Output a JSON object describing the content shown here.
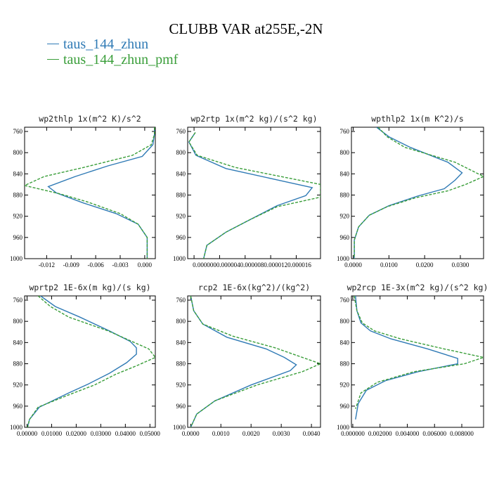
{
  "title": "CLUBB VAR at255E,-2N",
  "legend": [
    {
      "label": "taus_144_zhun",
      "color": "#2f7ab5"
    },
    {
      "label": "taus_144_zhun_pmf",
      "color": "#3a9e3a"
    }
  ],
  "chart_data": [
    {
      "type": "line",
      "title": "wp2thlp  1x(m^2 K)/s^2",
      "ylim": [
        1000,
        752
      ],
      "yticks": [
        760,
        800,
        840,
        880,
        920,
        960,
        1000
      ],
      "xlim": [
        -0.0147,
        0.0013
      ],
      "xticks": [
        -0.012,
        -0.009,
        -0.006,
        -0.003,
        0.0
      ],
      "xticklabels": [
        "-0.012",
        "-0.009",
        "-0.006",
        "-0.003",
        "0.000"
      ],
      "series": [
        {
          "name": "taus_144_zhun",
          "color": "#2f7ab5",
          "dash": "",
          "x": [
            0.0012,
            0.0012,
            0.001,
            -0.0003,
            -0.0045,
            -0.0085,
            -0.0118,
            -0.0108,
            -0.0075,
            -0.0035,
            -0.0008,
            0.0003,
            0.0003
          ],
          "y": [
            752,
            765,
            785,
            807,
            825,
            845,
            864,
            876,
            895,
            915,
            935,
            960,
            1000
          ]
        },
        {
          "name": "taus_144_zhun_pmf",
          "color": "#3a9e3a",
          "dash": "4,2",
          "x": [
            0.0012,
            0.0012,
            0.0008,
            -0.0015,
            -0.0075,
            -0.0123,
            -0.0147,
            -0.0103,
            -0.007,
            -0.003,
            -0.0008,
            0.0003,
            0.0003
          ],
          "y": [
            752,
            765,
            785,
            805,
            828,
            845,
            862,
            878,
            893,
            915,
            935,
            960,
            1000
          ]
        }
      ]
    },
    {
      "type": "line",
      "title": "wp2rtp  1x(m^2 kg)/(s^2 kg)",
      "ylim": [
        1000,
        752
      ],
      "yticks": [
        760,
        800,
        840,
        880,
        920,
        960,
        1000
      ],
      "xlim": [
        -1e-06,
        1.98e-05
      ],
      "xticks": [
        0.0,
        4e-06,
        8e-06,
        1.2e-05,
        1.6e-05
      ],
      "xticklabels": [
        "0.000000",
        "0.000004",
        "0.000008",
        "0.000012",
        "0.000016"
      ],
      "xticklabels_joined": "0.0000000.0000040.0000080.0000120.000016",
      "series": [
        {
          "name": "taus_144_zhun",
          "color": "#2f7ab5",
          "dash": "",
          "x": [
            2e-07,
            -8e-07,
            3e-07,
            5e-06,
            1.85e-05,
            1.75e-05,
            1.3e-05,
            9e-06,
            5e-06,
            2e-06,
            1.5e-06
          ],
          "y": [
            762,
            780,
            805,
            830,
            866,
            881,
            900,
            925,
            950,
            975,
            1000
          ]
        },
        {
          "name": "taus_144_zhun_pmf",
          "color": "#3a9e3a",
          "dash": "4,2",
          "x": [
            2e-07,
            -8e-07,
            5e-07,
            6.5e-06,
            1.98e-05,
            1.98e-05,
            1.3e-05,
            8.5e-06,
            5e-06,
            2e-06,
            1.5e-06
          ],
          "y": [
            762,
            780,
            805,
            828,
            860,
            884,
            902,
            928,
            950,
            975,
            1000
          ]
        }
      ]
    },
    {
      "type": "line",
      "title": "wpthlp2  1x(m K^2)/s",
      "ylim": [
        1000,
        752
      ],
      "yticks": [
        760,
        800,
        840,
        880,
        920,
        960,
        1000
      ],
      "xlim": [
        -0.0005,
        0.0365
      ],
      "xticks": [
        0.0,
        0.01,
        0.02,
        0.03
      ],
      "xticklabels": [
        "0.0000",
        "0.0100",
        "0.0200",
        "0.0300"
      ],
      "series": [
        {
          "name": "taus_144_zhun",
          "color": "#2f7ab5",
          "dash": "",
          "x": [
            0.0065,
            0.01,
            0.016,
            0.0265,
            0.0305,
            0.0285,
            0.0255,
            0.018,
            0.01,
            0.0045,
            0.0015,
            0.0003,
            0.0003
          ],
          "y": [
            752,
            770,
            790,
            818,
            838,
            852,
            868,
            882,
            900,
            918,
            940,
            965,
            1000
          ]
        },
        {
          "name": "taus_144_zhun_pmf",
          "color": "#3a9e3a",
          "dash": "4,2",
          "x": [
            0.007,
            0.0095,
            0.0145,
            0.0285,
            0.0365,
            0.0315,
            0.0265,
            0.0175,
            0.0095,
            0.0045,
            0.0015,
            0.0003,
            0.0003
          ],
          "y": [
            752,
            770,
            790,
            818,
            845,
            860,
            872,
            885,
            902,
            918,
            940,
            965,
            1000
          ]
        }
      ]
    },
    {
      "type": "line",
      "title": "wprtp2  1E-6x(m kg)/(s kg)",
      "ylim": [
        1000,
        752
      ],
      "yticks": [
        760,
        800,
        840,
        880,
        920,
        960,
        1000
      ],
      "xlim": [
        -0.001,
        0.0522
      ],
      "xticks": [
        0.0,
        0.01,
        0.02,
        0.03,
        0.04,
        0.05
      ],
      "xticklabels": [
        "0.00000",
        "0.01000",
        "0.02000",
        "0.03000",
        "0.04000",
        "0.05000"
      ],
      "series": [
        {
          "name": "taus_144_zhun",
          "color": "#2f7ab5",
          "dash": "",
          "x": [
            0.0055,
            0.0115,
            0.0215,
            0.0335,
            0.042,
            0.0445,
            0.0445,
            0.0405,
            0.0335,
            0.025,
            0.017,
            0.005,
            0.001,
            0.0002
          ],
          "y": [
            752,
            772,
            792,
            818,
            838,
            850,
            862,
            878,
            898,
            918,
            935,
            962,
            985,
            1000
          ]
        },
        {
          "name": "taus_144_zhun_pmf",
          "color": "#3a9e3a",
          "dash": "4,2",
          "x": [
            0.0045,
            0.0095,
            0.017,
            0.033,
            0.0495,
            0.0522,
            0.0445,
            0.036,
            0.0275,
            0.019,
            0.0045,
            0.001,
            0.0002
          ],
          "y": [
            752,
            772,
            792,
            818,
            852,
            868,
            884,
            900,
            920,
            935,
            962,
            985,
            1000
          ]
        }
      ]
    },
    {
      "type": "line",
      "title": "rcp2  1E-6x(kg^2)/(kg^2)",
      "ylim": [
        1000,
        752
      ],
      "yticks": [
        760,
        800,
        840,
        880,
        920,
        960,
        1000
      ],
      "xlim": [
        -0.0001,
        0.0043
      ],
      "xticks": [
        0.0,
        0.001,
        0.002,
        0.003,
        0.004
      ],
      "xticklabels": [
        "0.0000",
        "0.0010",
        "0.0020",
        "0.0030",
        "0.0040"
      ],
      "series": [
        {
          "name": "taus_144_zhun",
          "color": "#2f7ab5",
          "dash": "",
          "x": [
            0.0,
            0.0001,
            0.0004,
            0.0012,
            0.0025,
            0.0031,
            0.0035,
            0.0033,
            0.002,
            0.0008,
            0.0002,
            0.0
          ],
          "y": [
            752,
            780,
            805,
            830,
            852,
            868,
            882,
            893,
            920,
            950,
            975,
            1000
          ]
        },
        {
          "name": "taus_144_zhun_pmf",
          "color": "#3a9e3a",
          "dash": "4,2",
          "x": [
            0.0,
            0.0001,
            0.0004,
            0.0014,
            0.0028,
            0.0036,
            0.0043,
            0.0037,
            0.0022,
            0.0008,
            0.0002,
            0.0
          ],
          "y": [
            752,
            780,
            805,
            828,
            850,
            866,
            880,
            895,
            920,
            950,
            975,
            1000
          ]
        }
      ]
    },
    {
      "type": "line",
      "title": "wp2rcp  1E-3x(m^2 kg)/(s^2 kg)",
      "ylim": [
        1000,
        752
      ],
      "yticks": [
        760,
        800,
        840,
        880,
        920,
        960,
        1000
      ],
      "xlim": [
        -0.0001,
        0.0096
      ],
      "xticks": [
        0.0,
        0.002,
        0.004,
        0.006,
        0.008
      ],
      "xticklabels": [
        "0.000000",
        "0.002000",
        "0.004000",
        "0.006000",
        "0.008000"
      ],
      "series": [
        {
          "name": "taus_144_zhun",
          "color": "#2f7ab5",
          "dash": "",
          "x": [
            0.0002,
            0.0003,
            0.0006,
            0.0013,
            0.0028,
            0.0055,
            0.0077,
            0.0077,
            0.0048,
            0.0024,
            0.001,
            0.0004,
            0.0002
          ],
          "y": [
            752,
            780,
            803,
            818,
            833,
            852,
            870,
            880,
            895,
            912,
            930,
            955,
            985
          ]
        },
        {
          "name": "taus_144_zhun_pmf",
          "color": "#3a9e3a",
          "dash": "4,2",
          "x": [
            0.0001,
            0.0003,
            0.0007,
            0.0016,
            0.0035,
            0.0067,
            0.0096,
            0.0082,
            0.0045,
            0.0018,
            0.0006,
            0.0002
          ],
          "y": [
            752,
            780,
            803,
            818,
            833,
            852,
            868,
            880,
            895,
            915,
            935,
            965
          ]
        }
      ]
    }
  ]
}
